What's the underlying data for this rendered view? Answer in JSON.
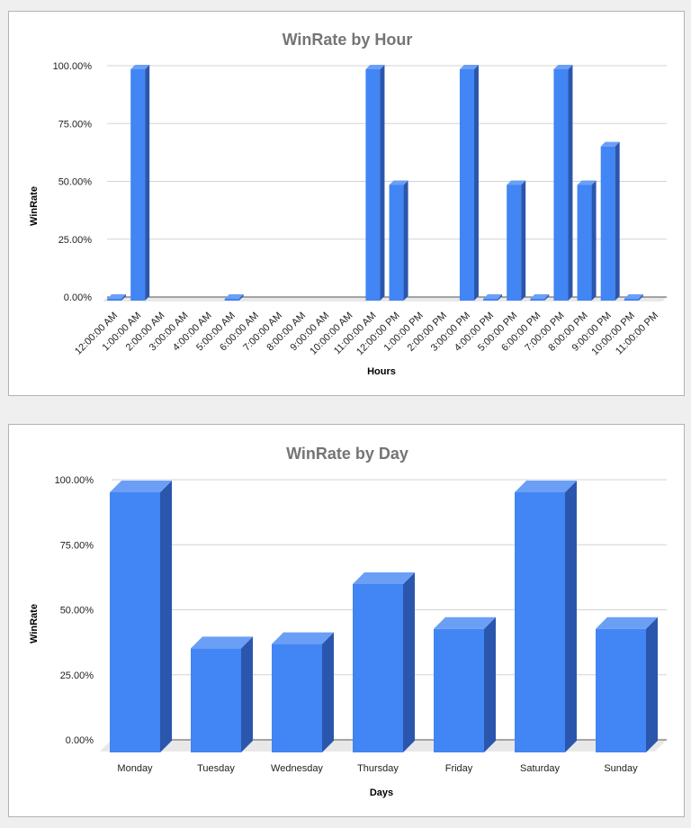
{
  "colors": {
    "bar_front": "#4285f4",
    "bar_side": "#2b56ad",
    "bar_top": "#6b9ff6",
    "grid": "#d3d3d3",
    "floor": "#e8e8e8"
  },
  "chart_data": [
    {
      "type": "bar",
      "title": "WinRate by Hour",
      "xlabel": "Hours",
      "ylabel": "WinRate",
      "ylim": [
        0,
        1
      ],
      "yticks": [
        "0.00%",
        "25.00%",
        "50.00%",
        "75.00%",
        "100.00%"
      ],
      "categories": [
        "12:00:00 AM",
        "1:00:00 AM",
        "2:00:00 AM",
        "3:00:00 AM",
        "4:00:00 AM",
        "5:00:00 AM",
        "6:00:00 AM",
        "7:00:00 AM",
        "8:00:00 AM",
        "9:00:00 AM",
        "10:00:00 AM",
        "11:00:00 AM",
        "12:00:00 PM",
        "1:00:00 PM",
        "2:00:00 PM",
        "3:00:00 PM",
        "4:00:00 PM",
        "5:00:00 PM",
        "6:00:00 PM",
        "7:00:00 PM",
        "8:00:00 PM",
        "9:00:00 PM",
        "10:00:00 PM",
        "11:00:00 PM"
      ],
      "values": [
        0,
        1.0,
        null,
        null,
        null,
        0,
        null,
        null,
        null,
        null,
        null,
        1.0,
        0.5,
        null,
        null,
        1.0,
        0,
        0.5,
        0,
        1.0,
        0.5,
        0.6667,
        0,
        null
      ],
      "grid": true,
      "legend": "none",
      "three_d": true
    },
    {
      "type": "bar",
      "title": "WinRate by Day",
      "xlabel": "Days",
      "ylabel": "WinRate",
      "ylim": [
        0,
        1
      ],
      "yticks": [
        "0.00%",
        "25.00%",
        "50.00%",
        "75.00%",
        "100.00%"
      ],
      "categories": [
        "Monday",
        "Tuesday",
        "Wednesday",
        "Thursday",
        "Friday",
        "Saturday",
        "Sunday"
      ],
      "values": [
        1.0,
        0.4,
        0.4167,
        0.6471,
        0.475,
        1.0,
        0.475
      ],
      "grid": true,
      "legend": "none",
      "three_d": true
    }
  ]
}
